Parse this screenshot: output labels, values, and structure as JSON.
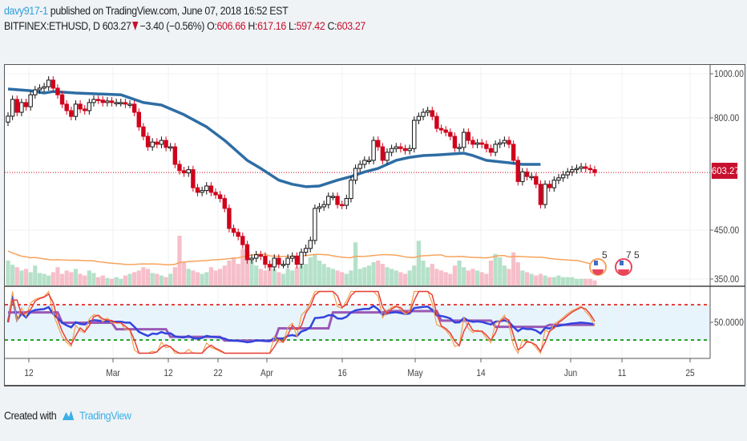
{
  "header": {
    "author": "davy917-1",
    "published_text": "published on TradingView.com, June 07, 2018 16:52 EST",
    "symbol": "BITFINEX:ETHUSD, D",
    "last": "603.27",
    "change": "−3.40 (−0.56%)",
    "open_label": "O:",
    "open": "606.66",
    "high_label": "H:",
    "high": "617.16",
    "low_label": "L:",
    "low": "597.42",
    "close_label": "C:",
    "close": "603.27"
  },
  "price_axis": {
    "labels": [
      "1000.00",
      "800.00",
      "450.00",
      "350.00"
    ],
    "current_price_tag": "603.27"
  },
  "rsi_axis": {
    "label": "50.0000"
  },
  "time_axis": {
    "labels": [
      "12",
      "Mar",
      "12",
      "22",
      "Apr",
      "16",
      "May",
      "14",
      "Jun",
      "11",
      "25"
    ]
  },
  "events": [
    {
      "icon": "us-flag-event-icon",
      "label": "5",
      "color": "#f7a35c"
    },
    {
      "icon": "us-flag-event-icon",
      "label": "7 5",
      "color": "#e8465a"
    }
  ],
  "footer": {
    "created_with": "Created with",
    "brand": "TradingView"
  },
  "colors": {
    "up": "#ffffff",
    "down": "#d0021b",
    "ma": "#2e6da4",
    "vol_up": "#a8dcc0",
    "vol_down": "#f5b4c0",
    "vol_ma": "#f7a35c",
    "rsi_raw": "#f0a050",
    "rsi_fast": "#e8403a",
    "rsi_slow": "#3344dd",
    "rsi_step": "#9b59b6",
    "accent": "#2d9fd9"
  },
  "chart_data": {
    "type": "candlestick",
    "scale": "log",
    "ylim": [
      350,
      1000
    ],
    "x_range": [
      "2018-02-08",
      "2018-06-07"
    ],
    "close": [
      805,
      877,
      821,
      863,
      845,
      898,
      921,
      929,
      936,
      968,
      929,
      898,
      856,
      828,
      804,
      856,
      835,
      828,
      863,
      877,
      874,
      863,
      870,
      863,
      863,
      863,
      856,
      856,
      821,
      762,
      726,
      688,
      705,
      697,
      711,
      686,
      688,
      629,
      609,
      602,
      612,
      558,
      545,
      550,
      563,
      545,
      538,
      528,
      502,
      453,
      444,
      435,
      417,
      386,
      389,
      396,
      393,
      377,
      372,
      389,
      377,
      377,
      389,
      393,
      377,
      401,
      409,
      426,
      502,
      506,
      512,
      534,
      534,
      512,
      510,
      528,
      580,
      616,
      629,
      642,
      642,
      711,
      688,
      642,
      669,
      682,
      688,
      682,
      675,
      682,
      788,
      804,
      821,
      828,
      804,
      756,
      750,
      741,
      726,
      684,
      686,
      741,
      711,
      697,
      702,
      697,
      682,
      669,
      697,
      702,
      711,
      697,
      642,
      576,
      605,
      591,
      591,
      568,
      512,
      568,
      558,
      580,
      587,
      596,
      605,
      612,
      616,
      621,
      616,
      612,
      603.27
    ],
    "volume": [
      30,
      25,
      22,
      18,
      20,
      16,
      24,
      15,
      14,
      12,
      16,
      22,
      14,
      18,
      16,
      20,
      14,
      12,
      18,
      15,
      10,
      12,
      9,
      8,
      10,
      8,
      12,
      14,
      16,
      18,
      22,
      20,
      15,
      14,
      12,
      10,
      14,
      22,
      60,
      28,
      20,
      18,
      16,
      14,
      16,
      22,
      18,
      20,
      24,
      30,
      34,
      26,
      44,
      36,
      30,
      24,
      20,
      18,
      24,
      20,
      16,
      14,
      20,
      18,
      22,
      24,
      26,
      34,
      38,
      30,
      26,
      22,
      20,
      18,
      16,
      14,
      18,
      52,
      20,
      22,
      24,
      28,
      30,
      26,
      22,
      20,
      18,
      16,
      14,
      18,
      24,
      54,
      30,
      22,
      26,
      20,
      18,
      16,
      14,
      24,
      30,
      22,
      18,
      20,
      18,
      16,
      14,
      30,
      38,
      34,
      24,
      20,
      40,
      28,
      18,
      16,
      14,
      12,
      14,
      12,
      10,
      10,
      12,
      10,
      10,
      10,
      8,
      8,
      8,
      8,
      6
    ],
    "ma_points": [
      [
        0,
        925
      ],
      [
        5,
        917
      ],
      [
        8,
        906
      ],
      [
        10,
        913
      ],
      [
        15,
        906
      ],
      [
        25,
        898
      ],
      [
        30,
        863
      ],
      [
        34,
        852
      ],
      [
        39,
        811
      ],
      [
        44,
        762
      ],
      [
        48,
        711
      ],
      [
        53,
        642
      ],
      [
        56,
        616
      ],
      [
        60,
        580
      ],
      [
        63,
        568
      ],
      [
        66,
        561
      ],
      [
        69,
        563
      ],
      [
        73,
        580
      ],
      [
        76,
        591
      ],
      [
        79,
        605
      ],
      [
        82,
        616
      ],
      [
        86,
        642
      ],
      [
        89,
        652
      ],
      [
        92,
        658
      ],
      [
        95,
        660
      ],
      [
        98,
        663
      ],
      [
        101,
        666
      ],
      [
        103,
        658
      ],
      [
        106,
        642
      ],
      [
        111,
        634
      ],
      [
        114,
        629
      ],
      [
        118,
        629
      ]
    ],
    "rsi_levels": {
      "upper": 70,
      "middle": 50,
      "lower": 30
    }
  }
}
